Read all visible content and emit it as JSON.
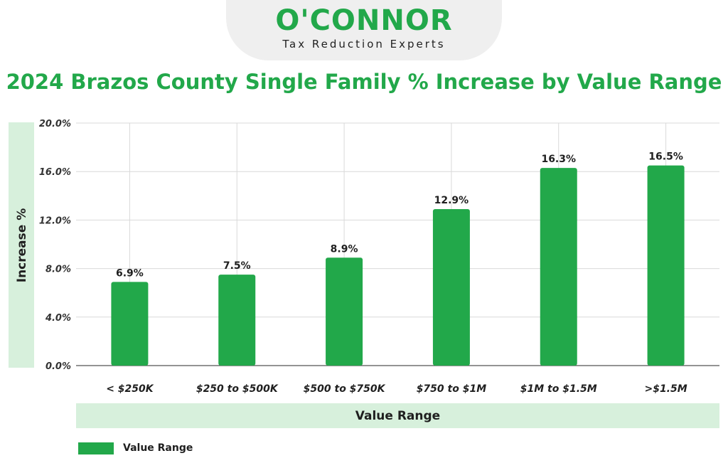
{
  "logo": {
    "name": "O'CONNOR",
    "tagline": "Tax Reduction Experts"
  },
  "colors": {
    "bar": "#22a84a",
    "title": "#22a84a",
    "band": "#d7f0dc",
    "grid": "#d9d9d9"
  },
  "chart_data": {
    "type": "bar",
    "title": "2024 Brazos County Single Family % Increase by Value Range",
    "xlabel": "Value Range",
    "ylabel": "Increase %",
    "categories": [
      "< $250K",
      "$250 to $500K",
      "$500 to $750K",
      "$750 to $1M",
      "$1M to $1.5M",
      ">$1.5M"
    ],
    "series": [
      {
        "name": "Value Range",
        "values": [
          6.9,
          7.5,
          8.9,
          12.9,
          16.3,
          16.5
        ]
      }
    ],
    "data_labels": [
      "6.9%",
      "7.5%",
      "8.9%",
      "12.9%",
      "16.3%",
      "16.5%"
    ],
    "ylim": [
      0,
      20
    ],
    "yticks": [
      "0.0%",
      "4.0%",
      "8.0%",
      "12.0%",
      "16.0%",
      "20.0%"
    ],
    "ytick_values": [
      0,
      4,
      8,
      12,
      16,
      20
    ],
    "grid": true,
    "legend_position": "bottom-left"
  }
}
